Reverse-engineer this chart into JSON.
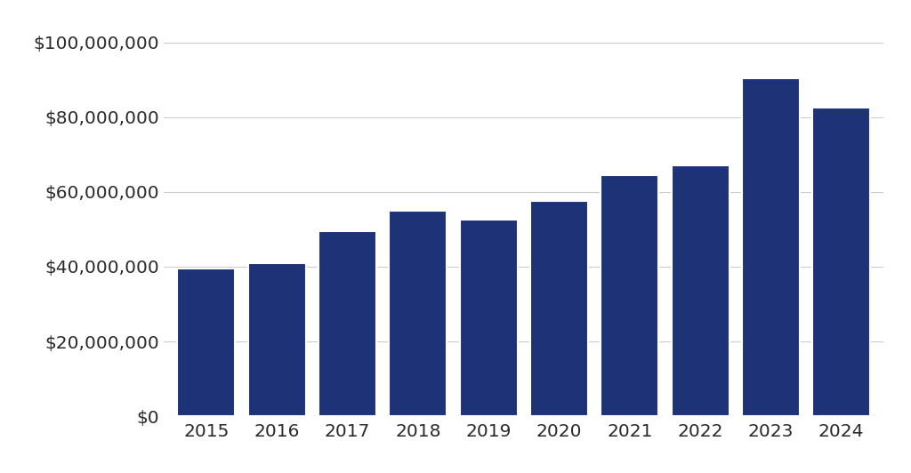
{
  "years": [
    "2015",
    "2016",
    "2017",
    "2018",
    "2019",
    "2020",
    "2021",
    "2022",
    "2023",
    "2024"
  ],
  "values": [
    39500000,
    41000000,
    49500000,
    55000000,
    52500000,
    57500000,
    64500000,
    67000000,
    90500000,
    82500000
  ],
  "bar_color": "#1e3278",
  "background_color": "#ffffff",
  "ylim": [
    0,
    105000000
  ],
  "yticks": [
    0,
    20000000,
    40000000,
    60000000,
    80000000,
    100000000
  ],
  "grid_color": "#cccccc",
  "bar_width": 0.82,
  "tick_label_color": "#2a2a2a",
  "tick_fontsize": 14.5,
  "bar_gap_color": "#ffffff"
}
